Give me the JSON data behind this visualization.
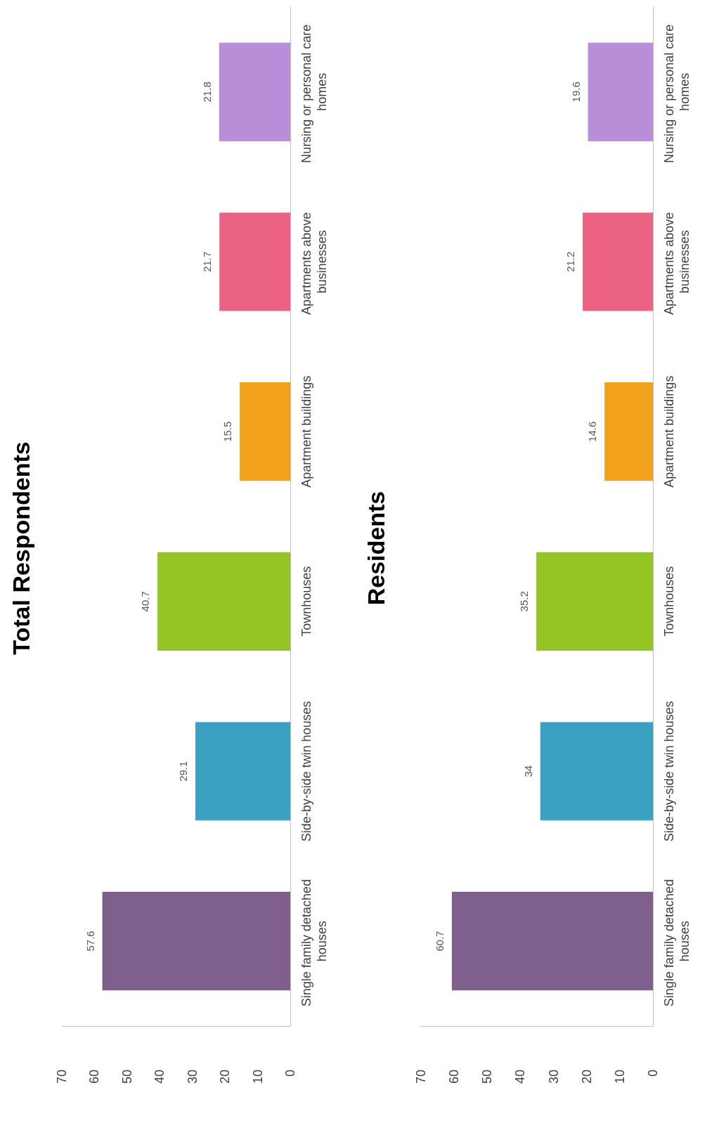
{
  "chart_data": [
    {
      "type": "bar",
      "orientation": "horizontal",
      "title": "Total Respondents",
      "categories": [
        "Nursing or personal care homes",
        "Apartments above businesses",
        "Apartment buildings",
        "Townhouses",
        "Side-by-side twin houses",
        "Single family detached houses"
      ],
      "values": [
        21.8,
        21.7,
        15.5,
        40.7,
        29.1,
        57.6
      ],
      "colors": [
        "#b98ed9",
        "#ec6283",
        "#f2a11d",
        "#93c524",
        "#3aa1c2",
        "#7e5f8e"
      ],
      "xlim": [
        70,
        0
      ],
      "xticks": [
        0,
        10,
        20,
        30,
        40,
        50,
        60,
        70
      ],
      "data_labels": true
    },
    {
      "type": "bar",
      "orientation": "horizontal",
      "title": "Residents",
      "categories": [
        "Nursing or personal care homes",
        "Apartments above businesses",
        "Apartment buildings",
        "Townhouses",
        "Side-by-side twin houses",
        "Single family detached houses"
      ],
      "values": [
        19.6,
        21.2,
        14.6,
        35.2,
        34,
        60.7
      ],
      "colors": [
        "#b98ed9",
        "#ec6283",
        "#f2a11d",
        "#93c524",
        "#3aa1c2",
        "#7e5f8e"
      ],
      "xlim": [
        70,
        0
      ],
      "xticks": [
        0,
        10,
        20,
        30,
        40,
        50,
        60,
        70
      ],
      "data_labels": true
    }
  ]
}
